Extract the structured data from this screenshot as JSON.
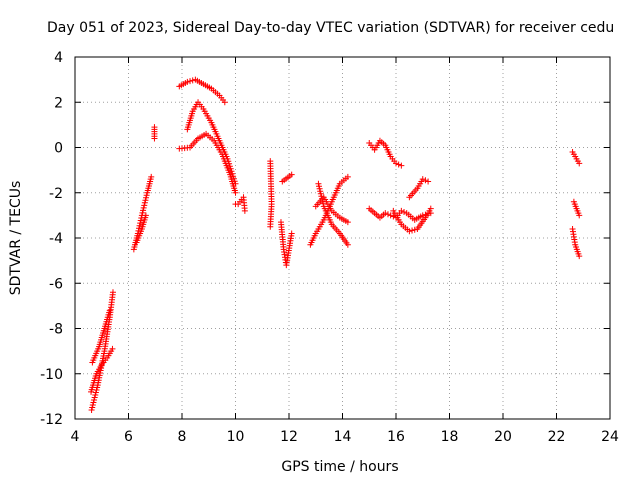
{
  "chart_data": {
    "type": "scatter",
    "title": "Day 051 of 2023, Sidereal Day-to-day VTEC variation (SDTVAR) for receiver cedu",
    "xlabel": "GPS time / hours",
    "ylabel": "SDTVAR / TECUs",
    "xlim": [
      4,
      24
    ],
    "ylim": [
      -12,
      4
    ],
    "xticks": [
      4,
      6,
      8,
      10,
      12,
      14,
      16,
      18,
      20,
      22,
      24
    ],
    "yticks": [
      -12,
      -10,
      -8,
      -6,
      -4,
      -2,
      0,
      2,
      4
    ],
    "grid": true,
    "marker": "+",
    "color": "#ff0000",
    "segments": [
      {
        "x": [
          4.62,
          4.85,
          5.1,
          5.3,
          5.42
        ],
        "y": [
          -11.6,
          -10.5,
          -9.0,
          -7.5,
          -6.4
        ]
      },
      {
        "x": [
          4.6,
          4.8,
          5.0,
          5.2,
          5.4
        ],
        "y": [
          -10.8,
          -10.0,
          -9.6,
          -9.3,
          -8.9
        ]
      },
      {
        "x": [
          4.65,
          4.9,
          5.1,
          5.3
        ],
        "y": [
          -9.5,
          -8.8,
          -8.0,
          -7.2
        ]
      },
      {
        "x": [
          6.2,
          6.35,
          6.5,
          6.7,
          6.85
        ],
        "y": [
          -4.5,
          -3.8,
          -3.0,
          -2.0,
          -1.3
        ]
      },
      {
        "x": [
          6.3,
          6.5,
          6.65
        ],
        "y": [
          -4.2,
          -3.6,
          -3.0
        ]
      },
      {
        "x": [
          6.97,
          6.97
        ],
        "y": [
          0.9,
          0.4
        ]
      },
      {
        "x": [
          7.9,
          8.2,
          8.5,
          8.8,
          9.1,
          9.4,
          9.6
        ],
        "y": [
          2.7,
          2.9,
          3.0,
          2.8,
          2.6,
          2.3,
          2.0
        ]
      },
      {
        "x": [
          8.2,
          8.4,
          8.6,
          8.8,
          9.1,
          9.4,
          9.7,
          10.0
        ],
        "y": [
          0.8,
          1.6,
          2.0,
          1.7,
          1.1,
          0.3,
          -0.5,
          -1.6
        ]
      },
      {
        "x": [
          7.9,
          8.3,
          8.6,
          8.9,
          9.2,
          9.5,
          9.8,
          10.0
        ],
        "y": [
          -0.05,
          0.0,
          0.4,
          0.6,
          0.3,
          -0.3,
          -1.2,
          -2.0
        ]
      },
      {
        "x": [
          10.0,
          10.1,
          10.3,
          10.35
        ],
        "y": [
          -2.5,
          -2.5,
          -2.2,
          -2.8
        ]
      },
      {
        "x": [
          11.3,
          11.35,
          11.3
        ],
        "y": [
          -0.6,
          -2.5,
          -3.5
        ]
      },
      {
        "x": [
          11.7,
          11.8,
          11.9,
          12.1
        ],
        "y": [
          -3.3,
          -4.5,
          -5.2,
          -3.8
        ]
      },
      {
        "x": [
          11.75,
          12.1
        ],
        "y": [
          -1.5,
          -1.2
        ]
      },
      {
        "x": [
          12.8,
          13.0,
          13.3,
          13.6,
          13.9,
          14.2
        ],
        "y": [
          -4.3,
          -3.8,
          -3.2,
          -2.4,
          -1.6,
          -1.3
        ]
      },
      {
        "x": [
          13.1,
          13.3,
          13.6,
          13.9,
          14.2
        ],
        "y": [
          -1.6,
          -2.6,
          -3.4,
          -3.8,
          -4.3
        ]
      },
      {
        "x": [
          13.0,
          13.3,
          13.6,
          13.9,
          14.2
        ],
        "y": [
          -2.6,
          -2.2,
          -2.8,
          -3.1,
          -3.3
        ]
      },
      {
        "x": [
          15.0,
          15.2,
          15.4,
          15.6,
          15.8,
          16.0,
          16.2,
          16.4,
          16.7,
          17.0,
          17.3
        ],
        "y": [
          -2.7,
          -2.9,
          -3.1,
          -2.9,
          -3.0,
          -3.1,
          -2.8,
          -2.9,
          -3.2,
          -3.0,
          -2.9
        ]
      },
      {
        "x": [
          15.0,
          15.2,
          15.4,
          15.6,
          15.8,
          16.0,
          16.2
        ],
        "y": [
          0.2,
          -0.1,
          0.3,
          0.1,
          -0.4,
          -0.7,
          -0.8
        ]
      },
      {
        "x": [
          15.9,
          16.2,
          16.5,
          16.8,
          17.1,
          17.3
        ],
        "y": [
          -2.8,
          -3.4,
          -3.7,
          -3.6,
          -3.1,
          -2.7
        ]
      },
      {
        "x": [
          16.5,
          16.8,
          17.0,
          17.2
        ],
        "y": [
          -2.2,
          -1.8,
          -1.4,
          -1.5
        ]
      },
      {
        "x": [
          22.6,
          22.7,
          22.85
        ],
        "y": [
          -0.2,
          -0.4,
          -0.7
        ]
      },
      {
        "x": [
          22.65,
          22.75,
          22.85
        ],
        "y": [
          -2.4,
          -2.7,
          -3.0
        ]
      },
      {
        "x": [
          22.6,
          22.7,
          22.85
        ],
        "y": [
          -3.6,
          -4.3,
          -4.8
        ]
      }
    ]
  }
}
